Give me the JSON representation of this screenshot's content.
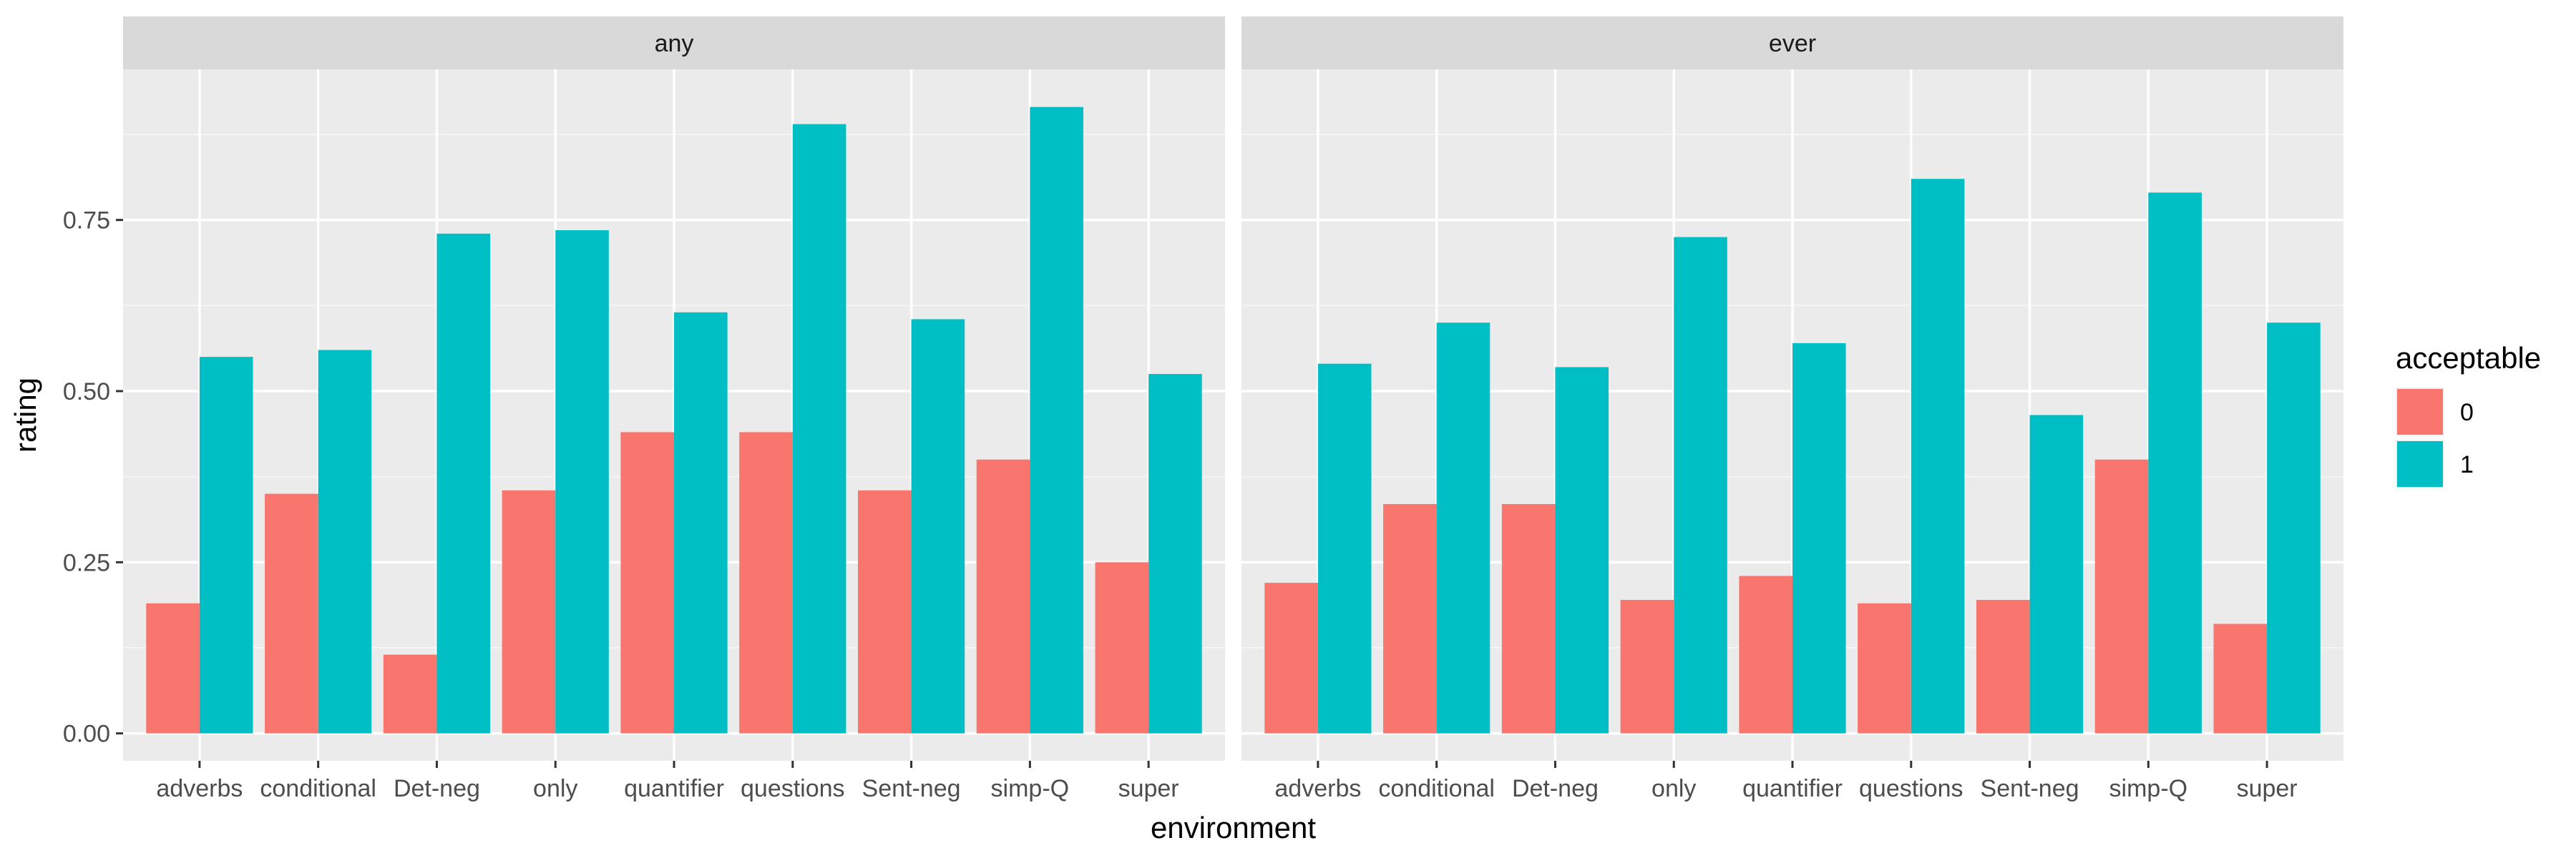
{
  "chart_data": {
    "type": "bar",
    "xlabel": "environment",
    "ylabel": "rating",
    "ylim": [
      -0.04,
      0.97
    ],
    "yticks": [
      0.0,
      0.25,
      0.5,
      0.75
    ],
    "ytick_labels": [
      "0.00",
      "0.25",
      "0.50",
      "0.75"
    ],
    "grid": true,
    "categories": [
      "adverbs",
      "conditional",
      "Det-neg",
      "only",
      "quantifier",
      "questions",
      "Sent-neg",
      "simp-Q",
      "super"
    ],
    "legend": {
      "title": "acceptable",
      "position": "right",
      "entries": [
        {
          "label": "0",
          "color": "#F8766D"
        },
        {
          "label": "1",
          "color": "#00BFC4"
        }
      ]
    },
    "panels": [
      {
        "strip": "any",
        "series": [
          {
            "name": "0",
            "values": [
              0.19,
              0.35,
              0.115,
              0.355,
              0.44,
              0.44,
              0.355,
              0.4,
              0.25
            ]
          },
          {
            "name": "1",
            "values": [
              0.55,
              0.56,
              0.73,
              0.735,
              0.615,
              0.89,
              0.605,
              0.915,
              0.525
            ]
          }
        ]
      },
      {
        "strip": "ever",
        "series": [
          {
            "name": "0",
            "values": [
              0.22,
              0.335,
              0.335,
              0.195,
              0.23,
              0.19,
              0.195,
              0.4,
              0.16
            ]
          },
          {
            "name": "1",
            "values": [
              0.54,
              0.6,
              0.535,
              0.725,
              0.57,
              0.81,
              0.465,
              0.79,
              0.6
            ]
          }
        ]
      }
    ]
  }
}
